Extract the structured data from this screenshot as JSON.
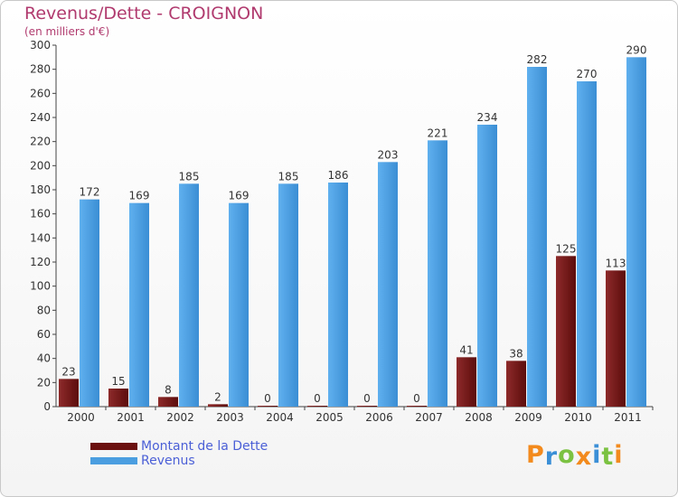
{
  "header": {
    "title": "Revenus/Dette - CROIGNON",
    "subtitle": "(en milliers d'€)"
  },
  "chart_data": {
    "type": "bar",
    "title": "Revenus/Dette - CROIGNON",
    "subtitle": "(en milliers d'€)",
    "xlabel": "",
    "ylabel": "",
    "ylim": [
      0,
      300
    ],
    "yticks": [
      0,
      20,
      40,
      60,
      80,
      100,
      120,
      140,
      160,
      180,
      200,
      220,
      240,
      260,
      280,
      300
    ],
    "grid": false,
    "categories": [
      "2000",
      "2001",
      "2002",
      "2003",
      "2004",
      "2005",
      "2006",
      "2007",
      "2008",
      "2009",
      "2010",
      "2011"
    ],
    "series": [
      {
        "name": "Montant de la Dette",
        "color": "#7a1b1b",
        "values": [
          23,
          15,
          8,
          2,
          0,
          0,
          0,
          0,
          41,
          38,
          125,
          113
        ]
      },
      {
        "name": "Revenus",
        "color": "#4b9fe0",
        "values": [
          172,
          169,
          185,
          169,
          185,
          186,
          203,
          221,
          234,
          282,
          270,
          290
        ]
      }
    ]
  },
  "legend": {
    "items": [
      {
        "label": "Montant de la Dette",
        "color": "#6b0f0f"
      },
      {
        "label": "Revenus",
        "color": "#4b9fe0"
      }
    ]
  },
  "logo": {
    "letters": [
      "P",
      "r",
      "o",
      "x",
      "i",
      "t",
      "i"
    ],
    "colors": [
      "#f28a1e",
      "#3a8fd6",
      "#7cc242",
      "#f28a1e",
      "#3a8fd6",
      "#7cc242",
      "#f28a1e"
    ]
  }
}
